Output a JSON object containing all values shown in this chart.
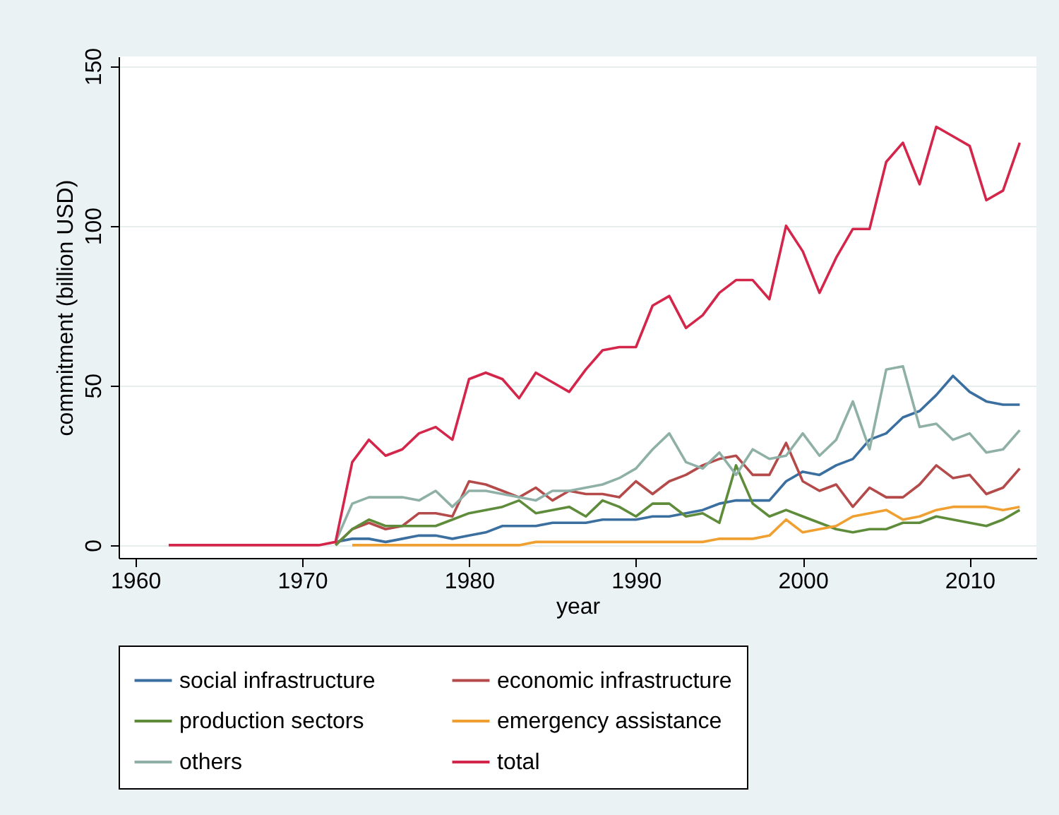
{
  "chart_data": {
    "type": "line",
    "xlabel": "year",
    "ylabel": "commitment (billion USD)",
    "x": [
      1962,
      1963,
      1964,
      1965,
      1966,
      1967,
      1968,
      1969,
      1970,
      1971,
      1972,
      1973,
      1974,
      1975,
      1976,
      1977,
      1978,
      1979,
      1980,
      1981,
      1982,
      1983,
      1984,
      1985,
      1986,
      1987,
      1988,
      1989,
      1990,
      1991,
      1992,
      1993,
      1994,
      1995,
      1996,
      1997,
      1998,
      1999,
      2000,
      2001,
      2002,
      2003,
      2004,
      2005,
      2006,
      2007,
      2008,
      2009,
      2010,
      2011,
      2012,
      2013
    ],
    "series": [
      {
        "name": "social infrastructure",
        "color": "#3a6fa0",
        "values": [
          null,
          null,
          null,
          null,
          null,
          null,
          null,
          null,
          null,
          null,
          1,
          2,
          2,
          1,
          2,
          3,
          3,
          2,
          3,
          4,
          6,
          6,
          6,
          7,
          7,
          7,
          8,
          8,
          8,
          9,
          9,
          10,
          11,
          13,
          14,
          14,
          14,
          20,
          23,
          22,
          25,
          27,
          33,
          35,
          40,
          42,
          47,
          53,
          48,
          45,
          44,
          44
        ]
      },
      {
        "name": "economic infrastructure",
        "color": "#b44a4a",
        "values": [
          null,
          null,
          null,
          null,
          null,
          null,
          null,
          null,
          null,
          null,
          0,
          5,
          7,
          5,
          6,
          10,
          10,
          9,
          20,
          19,
          17,
          15,
          18,
          14,
          17,
          16,
          16,
          15,
          20,
          16,
          20,
          22,
          25,
          27,
          28,
          22,
          22,
          32,
          20,
          17,
          19,
          12,
          18,
          15,
          15,
          19,
          25,
          21,
          22,
          16,
          18,
          24
        ]
      },
      {
        "name": "production sectors",
        "color": "#5e8c3a",
        "values": [
          null,
          null,
          null,
          null,
          null,
          null,
          null,
          null,
          null,
          null,
          0,
          5,
          8,
          6,
          6,
          6,
          6,
          8,
          10,
          11,
          12,
          14,
          10,
          11,
          12,
          9,
          14,
          12,
          9,
          13,
          13,
          9,
          10,
          7,
          25,
          13,
          9,
          11,
          9,
          7,
          5,
          4,
          5,
          5,
          7,
          7,
          9,
          8,
          7,
          6,
          8,
          11
        ]
      },
      {
        "name": "emergency assistance",
        "color": "#f0a030",
        "values": [
          null,
          null,
          null,
          null,
          null,
          null,
          null,
          null,
          null,
          null,
          null,
          0,
          0,
          0,
          0,
          0,
          0,
          0,
          0,
          0,
          0,
          0,
          1,
          1,
          1,
          1,
          1,
          1,
          1,
          1,
          1,
          1,
          1,
          2,
          2,
          2,
          3,
          8,
          4,
          5,
          6,
          9,
          10,
          11,
          8,
          9,
          11,
          12,
          12,
          12,
          11,
          12
        ]
      },
      {
        "name": "others",
        "color": "#8fb0a6",
        "values": [
          null,
          null,
          null,
          null,
          null,
          null,
          null,
          null,
          null,
          null,
          1,
          13,
          15,
          15,
          15,
          14,
          17,
          12,
          17,
          17,
          16,
          15,
          14,
          17,
          17,
          18,
          19,
          21,
          24,
          30,
          35,
          26,
          24,
          29,
          22,
          30,
          27,
          28,
          35,
          28,
          33,
          45,
          30,
          55,
          56,
          37,
          38,
          33,
          35,
          29,
          30,
          36
        ]
      },
      {
        "name": "total",
        "color": "#d4264a",
        "values": [
          0,
          0,
          0,
          0,
          0,
          0,
          0,
          0,
          0,
          0,
          1,
          26,
          33,
          28,
          30,
          35,
          37,
          33,
          52,
          54,
          52,
          46,
          54,
          51,
          48,
          55,
          61,
          62,
          62,
          75,
          78,
          68,
          72,
          79,
          83,
          83,
          77,
          100,
          92,
          79,
          90,
          99,
          99,
          120,
          126,
          113,
          131,
          128,
          125,
          108,
          111,
          126
        ]
      }
    ],
    "xlim": [
      1959,
      2014
    ],
    "xticks": [
      1960,
      1970,
      1980,
      1990,
      2000,
      2010
    ],
    "ylim": [
      -4,
      153
    ],
    "yticks": [
      0,
      50,
      100,
      150
    ],
    "grid": "y",
    "legend": "bottom"
  }
}
